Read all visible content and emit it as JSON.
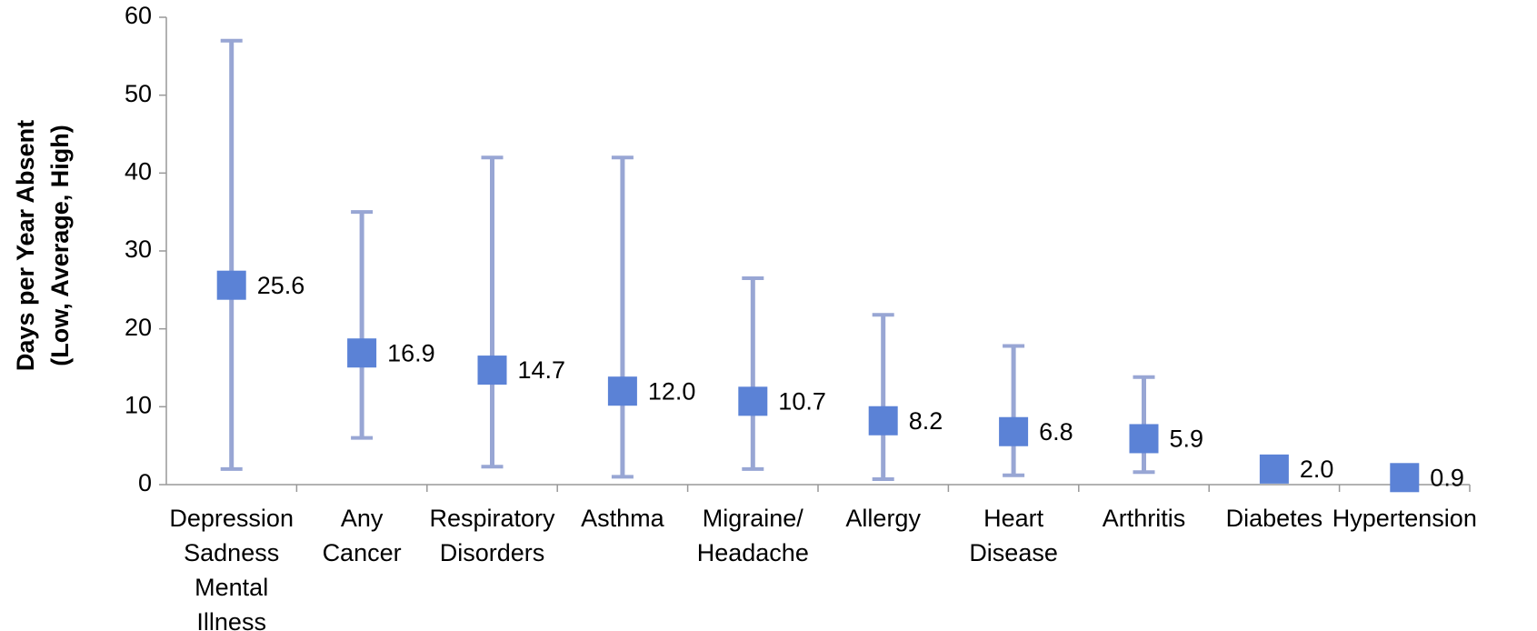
{
  "chart_data": {
    "type": "range-point",
    "ylabel": [
      "Days per Year Absent",
      "(Low, Average, High)"
    ],
    "categories": [
      "Depression\nSadness\nMental\nIllness",
      "Any\nCancer",
      "Respiratory\nDisorders",
      "Asthma",
      "Migraine/\nHeadache",
      "Allergy",
      "Heart\nDisease",
      "Arthritis",
      "Diabetes",
      "Hypertension"
    ],
    "values": [
      25.6,
      16.9,
      14.7,
      12.0,
      10.7,
      8.2,
      6.8,
      5.9,
      2.0,
      0.9
    ],
    "value_labels": [
      "25.6",
      "16.9",
      "14.7",
      "12.0",
      "10.7",
      "8.2",
      "6.8",
      "5.9",
      "2.0",
      "0.9"
    ],
    "low": [
      2,
      6,
      2.3,
      1,
      2,
      0.7,
      1.2,
      1.6,
      null,
      null
    ],
    "high": [
      57,
      35,
      42,
      42,
      26.5,
      21.8,
      17.8,
      13.8,
      null,
      null
    ],
    "color": "#5b82d6",
    "range_color": "#98a6d4",
    "ylim": [
      0,
      60
    ],
    "yticks": [
      0,
      10,
      20,
      30,
      40,
      50,
      60
    ],
    "grid": false
  }
}
